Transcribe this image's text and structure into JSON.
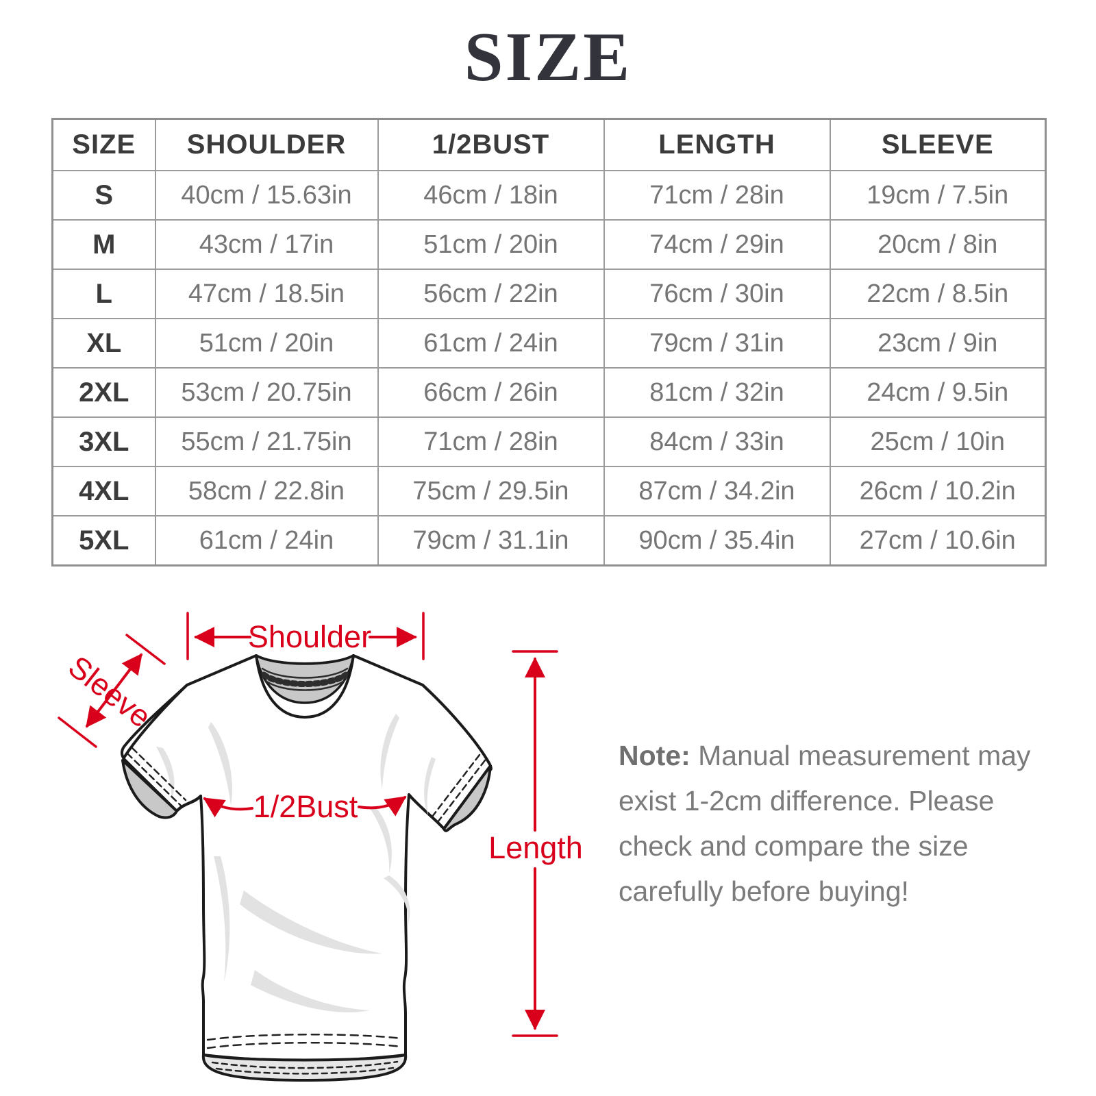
{
  "page_title": "SIZE",
  "chart_data": {
    "type": "table",
    "title": "SIZE",
    "headers": [
      "SIZE",
      "SHOULDER",
      "1/2BUST",
      "LENGTH",
      "SLEEVE"
    ],
    "rows": [
      [
        "S",
        "40cm / 15.63in",
        "46cm / 18in",
        "71cm / 28in",
        "19cm / 7.5in"
      ],
      [
        "M",
        "43cm / 17in",
        "51cm / 20in",
        "74cm / 29in",
        "20cm / 8in"
      ],
      [
        "L",
        "47cm / 18.5in",
        "56cm / 22in",
        "76cm / 30in",
        "22cm / 8.5in"
      ],
      [
        "XL",
        "51cm / 20in",
        "61cm / 24in",
        "79cm / 31in",
        "23cm / 9in"
      ],
      [
        "2XL",
        "53cm / 20.75in",
        "66cm / 26in",
        "81cm / 32in",
        "24cm / 9.5in"
      ],
      [
        "3XL",
        "55cm / 21.75in",
        "71cm / 28in",
        "84cm / 33in",
        "25cm / 10in"
      ],
      [
        "4XL",
        "58cm / 22.8in",
        "75cm / 29.5in",
        "87cm / 34.2in",
        "26cm / 10.2in"
      ],
      [
        "5XL",
        "61cm / 24in",
        "79cm / 31.1in",
        "90cm / 35.4in",
        "27cm / 10.6in"
      ]
    ]
  },
  "diagram": {
    "labels": {
      "shoulder": "Shoulder",
      "sleeve": "Sleeve",
      "bust": "1/2Bust",
      "length": "Length"
    },
    "accent_color": "#d9001b"
  },
  "note": {
    "label": "Note:",
    "line1": " Manual measurement may",
    "line2": "exist 1-2cm difference. Please",
    "line3": "check and compare the size",
    "line4": "carefully before buying!"
  }
}
